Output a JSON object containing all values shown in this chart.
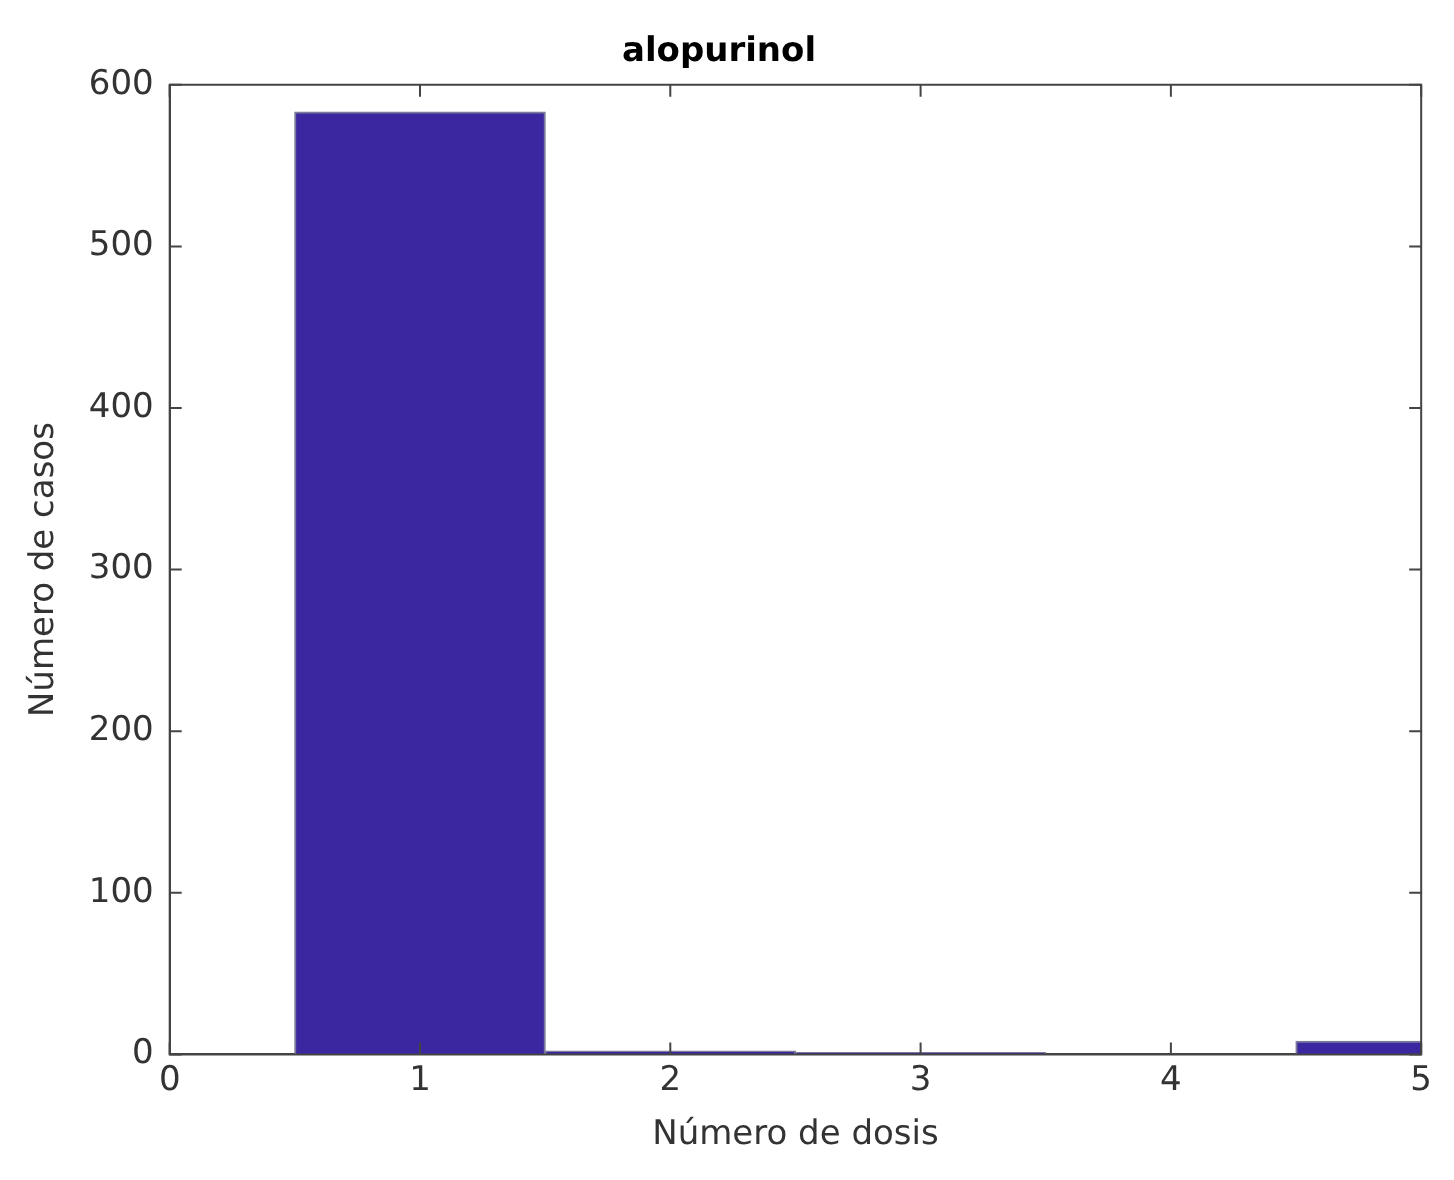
{
  "chart_data": {
    "type": "histogram",
    "title": "alopurinol",
    "xlabel": "Número de dosis",
    "ylabel": "Número de casos",
    "bins": [
      0.5,
      1.5,
      2.5,
      3.5,
      4.5,
      5.5
    ],
    "values": [
      583,
      2,
      1,
      0,
      8
    ],
    "color": "#3b27a0",
    "xlim": [
      0,
      5
    ],
    "xticks": [
      0,
      1,
      2,
      3,
      4,
      5
    ],
    "ylim": [
      0,
      600
    ],
    "yticks": [
      0,
      100,
      200,
      300,
      400,
      500,
      600
    ],
    "grid": false,
    "legend": false
  }
}
